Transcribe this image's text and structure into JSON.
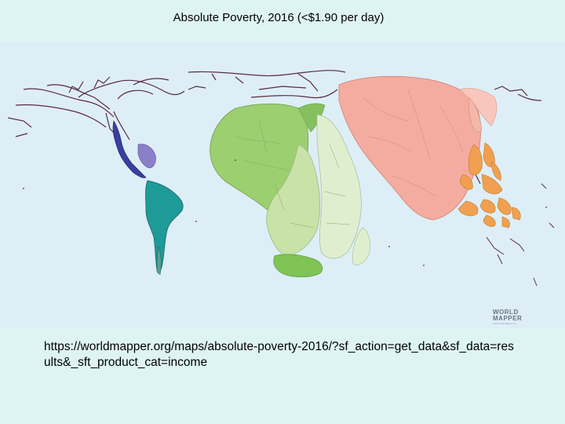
{
  "title": "Absolute Poverty, 2016 (<$1.90 per day)",
  "source_url": "https://worldmapper.org/maps/absolute-poverty-2016/?sf_action=get_data&sf_data=results&_sft_product_cat=income",
  "logo": {
    "line1": "WORLD",
    "line2": "MAPPER",
    "tagline": "www.worldmapper.org"
  },
  "colors": {
    "ocean": "#ddeef7",
    "slide_background": "#def4f3",
    "north_america_outline": "#5a2a40",
    "central_america": "#3a3ea0",
    "caribbean": "#8a80c8",
    "south_america": "#1e9a98",
    "africa_west": "#9ccf70",
    "africa_central": "#c8e2a8",
    "africa_east": "#e0eed0",
    "africa_south": "#7fc455",
    "south_asia": "#f5aca0",
    "east_asia": "#f8c6bc",
    "southeast_asia": "#f0a050"
  }
}
